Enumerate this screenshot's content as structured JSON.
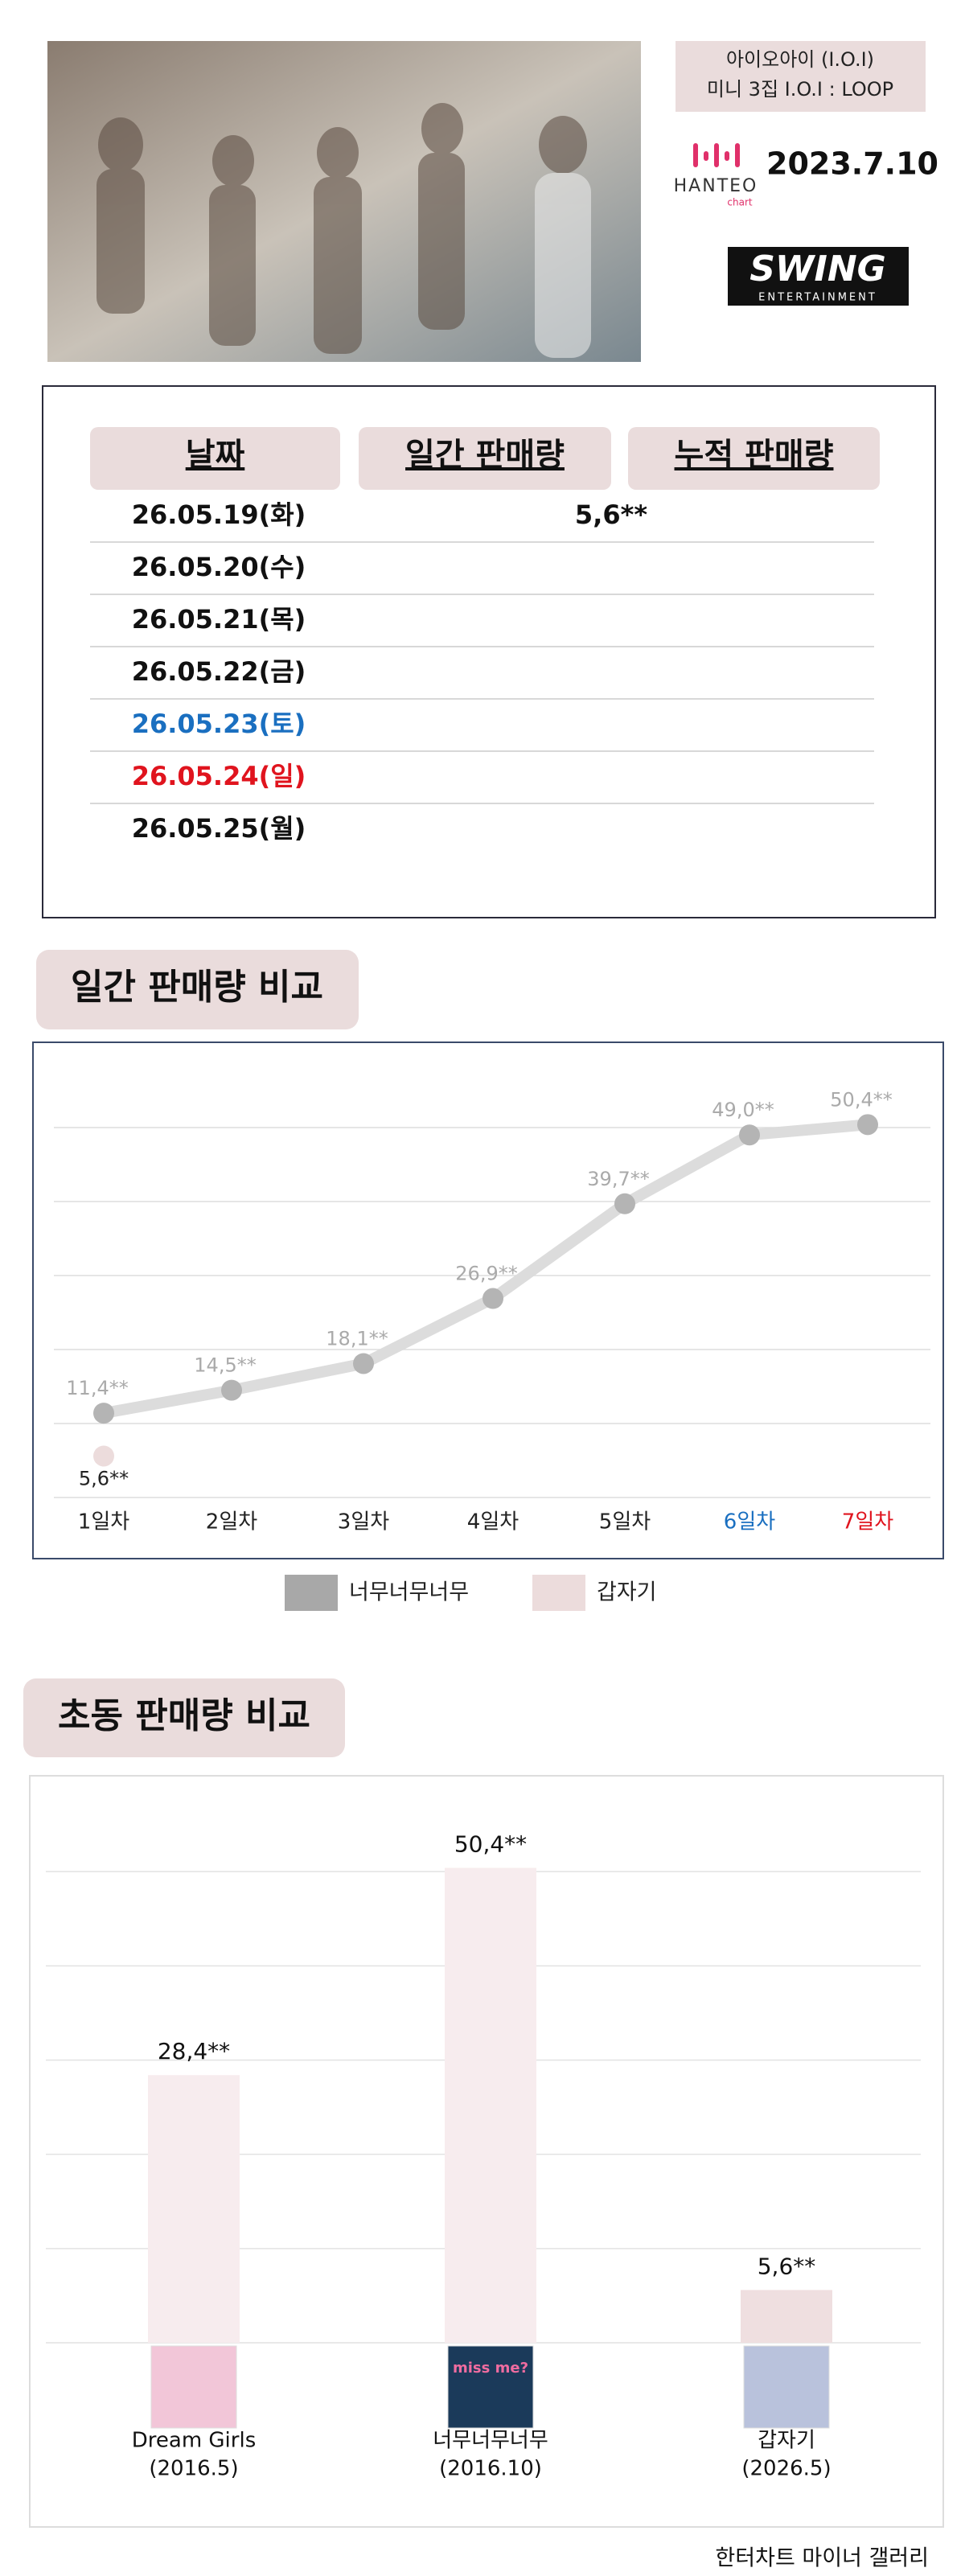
{
  "header": {
    "artist": "아이오아이 (I.O.I)",
    "album": "미니 3집 I.O.I : LOOP",
    "date": "2023.7.10",
    "hanteo": "HANTEO",
    "hanteo_sub": "chart",
    "label": "SWING",
    "label_sub": "ENTERTAINMENT"
  },
  "table": {
    "headers": [
      "날짜",
      "일간 판매량",
      "누적 판매량"
    ],
    "rows": [
      {
        "date": "26.05.19(화)",
        "daily": "5,6**"
      },
      {
        "date": "26.05.20(수)"
      },
      {
        "date": "26.05.21(목)"
      },
      {
        "date": "26.05.22(금)"
      },
      {
        "date": "26.05.23(토)",
        "color": "#1a6fc0"
      },
      {
        "date": "26.05.24(일)",
        "color": "#e0141e"
      },
      {
        "date": "26.05.25(월)"
      }
    ]
  },
  "chart_data": [
    {
      "type": "line",
      "title": "일간 판매량 비교",
      "categories": [
        "1일차",
        "2일차",
        "3일차",
        "4일차",
        "5일차",
        "6일차",
        "7일차"
      ],
      "category_colors": [
        "#222222",
        "#222222",
        "#222222",
        "#222222",
        "#222222",
        "#1a6fc0",
        "#e0141e"
      ],
      "series": [
        {
          "name": "너무너무너무",
          "color": "#b4b4b4",
          "line_color": "#dcdcdc",
          "values": [
            11400,
            14500,
            18100,
            26900,
            39700,
            49000,
            50400
          ],
          "value_labels": [
            "11,4**",
            "14,5**",
            "18,1**",
            "26,9**",
            "39,7**",
            "49,0**",
            "50,4**"
          ]
        },
        {
          "name": "갑자기",
          "color": "#ecdcdc",
          "values": [
            5600,
            null,
            null,
            null,
            null,
            null,
            null
          ],
          "value_labels": [
            "5,6**",
            null,
            null,
            null,
            null,
            null,
            null
          ]
        }
      ],
      "ylim": [
        0,
        60000
      ],
      "ygrid": [
        0,
        10000,
        20000,
        30000,
        40000,
        50000
      ],
      "legend": "bottom"
    },
    {
      "type": "bar",
      "title": "초동 판매량 비교",
      "categories": [
        "Dream Girls",
        "너무너무너무",
        "갑자기"
      ],
      "category_dates": [
        "(2016.5)",
        "(2016.10)",
        "(2026.5)"
      ],
      "cover_text": [
        null,
        "miss me?",
        null
      ],
      "values": [
        28400,
        50400,
        5600
      ],
      "value_labels": [
        "28,4**",
        "50,4**",
        "5,6**"
      ],
      "colors": [
        "#f7ecee",
        "#f7ecee",
        "#efdfe0"
      ],
      "ylim": [
        0,
        60000
      ],
      "ygrid": [
        0,
        10000,
        20000,
        30000,
        40000,
        50000
      ]
    }
  ],
  "footer": "한터차트 마이너 갤러리"
}
